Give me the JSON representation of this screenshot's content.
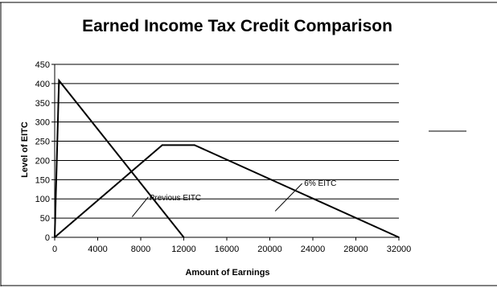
{
  "chart_data": {
    "type": "line",
    "title": "Earned Income Tax Credit Comparison",
    "xlabel": "Amount of Earnings",
    "ylabel": "Level of EITC",
    "xlim": [
      0,
      32000
    ],
    "ylim": [
      0,
      450
    ],
    "x_ticks": [
      0,
      4000,
      8000,
      12000,
      16000,
      20000,
      24000,
      28000,
      32000
    ],
    "y_ticks": [
      0,
      50,
      100,
      150,
      200,
      250,
      300,
      350,
      400,
      450
    ],
    "grid": "horizontal",
    "series": [
      {
        "name": "Previous EITC",
        "x": [
          0,
          400,
          12000
        ],
        "y": [
          0,
          408,
          0
        ]
      },
      {
        "name": "6% EITC",
        "x": [
          0,
          10000,
          13000,
          32000
        ],
        "y": [
          0,
          240,
          240,
          0
        ]
      }
    ],
    "annotations": [
      {
        "text": "Previous EITC",
        "series": "Previous EITC"
      },
      {
        "text": "6% EITC",
        "series": "6% EITC"
      }
    ]
  }
}
